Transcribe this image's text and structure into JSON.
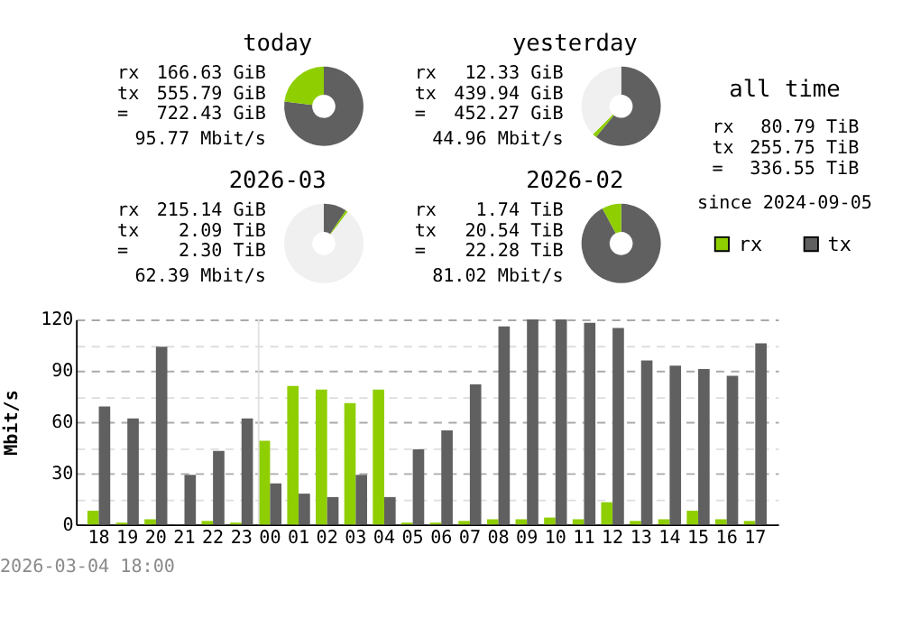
{
  "chart_data": [
    {
      "type": "donut",
      "title": "today",
      "categories": [
        null,
        null
      ],
      "values": [
        76.93,
        23.07
      ],
      "colors": [
        "#606060",
        "#8fce00"
      ],
      "annotations": [
        "rx",
        "166.63 GiB",
        "tx",
        "555.79 GiB",
        "=",
        "722.43 GiB",
        "95.77 Mbit/s"
      ]
    },
    {
      "type": "donut",
      "title": "yesterday",
      "categories": [
        null,
        null,
        null
      ],
      "values": [
        60.9,
        1.71,
        37.39
      ],
      "colors": [
        "#606060",
        "#8fce00",
        "#f0f0f0"
      ],
      "annotations": [
        "rx",
        "12.33 GiB",
        "tx",
        "439.94 GiB",
        "=",
        "452.27 GiB",
        "44.96 Mbit/s"
      ]
    },
    {
      "type": "donut",
      "title": "2026-03",
      "categories": [
        null,
        null,
        null
      ],
      "values": [
        9.38,
        0.94,
        89.68
      ],
      "colors": [
        "#606060",
        "#8fce00",
        "#f0f0f0"
      ],
      "annotations": [
        "rx",
        "215.14 GiB",
        "tx",
        "2.09 TiB",
        "=",
        "2.30 TiB",
        "62.39 Mbit/s"
      ]
    },
    {
      "type": "donut",
      "title": "2026-02",
      "categories": [
        null,
        null
      ],
      "values": [
        92.19,
        7.81
      ],
      "colors": [
        "#606060",
        "#8fce00"
      ],
      "annotations": [
        "rx",
        "1.74 TiB",
        "tx",
        "20.54 TiB",
        "=",
        "22.28 TiB",
        "81.02 Mbit/s"
      ]
    },
    {
      "type": "other",
      "title": "all time",
      "annotations": [
        "rx",
        "80.79 TiB",
        "tx",
        "255.75 TiB",
        "=",
        "336.55 TiB",
        "since 2024-09-05"
      ]
    },
    {
      "type": "bar",
      "ylabel": "Mbit/s",
      "categories": [
        "18",
        "19",
        "20",
        "21",
        "22",
        "23",
        "00",
        "01",
        "02",
        "03",
        "04",
        "05",
        "06",
        "07",
        "08",
        "09",
        "10",
        "11",
        "12",
        "13",
        "14",
        "15",
        "16",
        "17"
      ],
      "series": [
        {
          "name": "rx",
          "color": "#8fce00",
          "values": [
            8,
            1,
            3,
            0,
            2,
            1,
            49,
            81,
            79,
            71,
            79,
            1,
            1,
            2,
            3,
            3,
            4,
            3,
            13,
            2,
            3,
            8,
            3,
            2
          ]
        },
        {
          "name": "tx",
          "color": "#606060",
          "values": [
            69,
            62,
            104,
            29,
            43,
            62,
            24,
            18,
            16,
            29,
            16,
            44,
            55,
            82,
            116,
            120,
            120,
            118,
            115,
            96,
            93,
            91,
            87,
            106
          ]
        }
      ],
      "ylim": [
        0,
        120
      ],
      "yticks": [
        0,
        {
          "value": 15,
          "label": null
        },
        30,
        {
          "value": 45,
          "label": null
        },
        60,
        {
          "value": 75,
          "label": null
        },
        90,
        {
          "value": 105,
          "label": null
        },
        120
      ],
      "grid": "y",
      "legend": "top right",
      "ref_lines": [
        {
          "axis": "x",
          "value": "00",
          "color": "#e0e0e0"
        }
      ],
      "annotations": [
        "2026-03-04 18:00"
      ]
    }
  ]
}
